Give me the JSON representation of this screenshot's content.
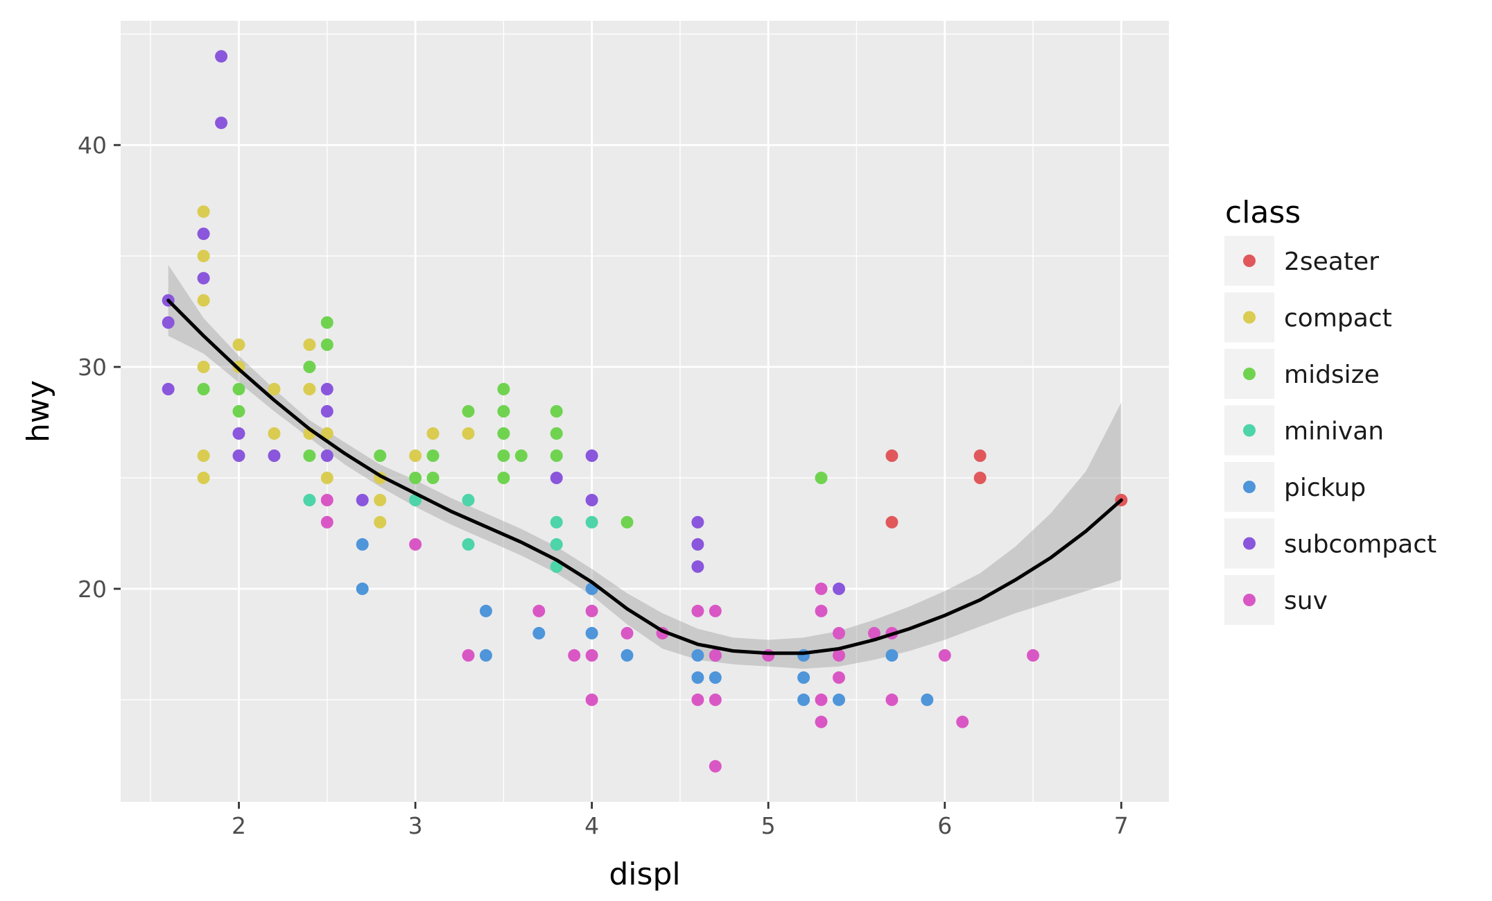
{
  "chart_data": {
    "type": "scatter",
    "xlabel": "displ",
    "ylabel": "hwy",
    "xlim": [
      1.33,
      7.27
    ],
    "ylim": [
      10.4,
      45.6
    ],
    "x_ticks": [
      2,
      3,
      4,
      5,
      6,
      7
    ],
    "y_ticks": [
      20,
      30,
      40
    ],
    "grid": true,
    "legend": {
      "title": "class",
      "position": "right"
    },
    "series": [
      {
        "name": "2seater",
        "color": "#e0585b",
        "points": [
          [
            5.7,
            26
          ],
          [
            5.7,
            23
          ],
          [
            6.2,
            26
          ],
          [
            6.2,
            25
          ],
          [
            7.0,
            24
          ]
        ]
      },
      {
        "name": "compact",
        "color": "#d9cc51",
        "points": [
          [
            1.8,
            37
          ],
          [
            1.8,
            35
          ],
          [
            1.8,
            33
          ],
          [
            1.8,
            30
          ],
          [
            1.8,
            26
          ],
          [
            1.8,
            25
          ],
          [
            2.0,
            31
          ],
          [
            2.0,
            30
          ],
          [
            2.2,
            29
          ],
          [
            2.2,
            27
          ],
          [
            2.4,
            31
          ],
          [
            2.4,
            29
          ],
          [
            2.4,
            27
          ],
          [
            2.5,
            27
          ],
          [
            2.5,
            25
          ],
          [
            2.8,
            25
          ],
          [
            2.8,
            24
          ],
          [
            2.8,
            23
          ],
          [
            3.0,
            26
          ],
          [
            3.1,
            27
          ],
          [
            3.3,
            27
          ]
        ]
      },
      {
        "name": "midsize",
        "color": "#6fd350",
        "points": [
          [
            1.8,
            29
          ],
          [
            2.0,
            29
          ],
          [
            2.0,
            28
          ],
          [
            2.4,
            30
          ],
          [
            2.4,
            26
          ],
          [
            2.5,
            32
          ],
          [
            2.5,
            31
          ],
          [
            2.8,
            26
          ],
          [
            3.0,
            25
          ],
          [
            3.1,
            26
          ],
          [
            3.1,
            25
          ],
          [
            3.3,
            28
          ],
          [
            3.5,
            29
          ],
          [
            3.5,
            28
          ],
          [
            3.5,
            27
          ],
          [
            3.5,
            26
          ],
          [
            3.5,
            25
          ],
          [
            3.6,
            26
          ],
          [
            3.8,
            28
          ],
          [
            3.8,
            27
          ],
          [
            3.8,
            26
          ],
          [
            4.2,
            23
          ],
          [
            5.3,
            25
          ]
        ]
      },
      {
        "name": "minivan",
        "color": "#4dd4a8",
        "points": [
          [
            2.4,
            24
          ],
          [
            3.0,
            24
          ],
          [
            3.3,
            24
          ],
          [
            3.3,
            22
          ],
          [
            3.8,
            23
          ],
          [
            3.8,
            22
          ],
          [
            3.8,
            21
          ],
          [
            4.0,
            23
          ]
        ]
      },
      {
        "name": "pickup",
        "color": "#4e95da",
        "points": [
          [
            2.7,
            22
          ],
          [
            2.7,
            20
          ],
          [
            3.4,
            19
          ],
          [
            3.4,
            17
          ],
          [
            3.7,
            18
          ],
          [
            4.0,
            20
          ],
          [
            4.0,
            18
          ],
          [
            4.2,
            17
          ],
          [
            4.6,
            17
          ],
          [
            4.6,
            16
          ],
          [
            4.7,
            16
          ],
          [
            4.7,
            17
          ],
          [
            5.2,
            17
          ],
          [
            5.2,
            16
          ],
          [
            5.2,
            15
          ],
          [
            5.4,
            15
          ],
          [
            5.7,
            17
          ],
          [
            5.9,
            15
          ]
        ]
      },
      {
        "name": "subcompact",
        "color": "#8a56dc",
        "points": [
          [
            1.6,
            33
          ],
          [
            1.6,
            32
          ],
          [
            1.6,
            29
          ],
          [
            1.8,
            36
          ],
          [
            1.8,
            34
          ],
          [
            1.9,
            44
          ],
          [
            1.9,
            41
          ],
          [
            2.0,
            27
          ],
          [
            2.0,
            26
          ],
          [
            2.2,
            26
          ],
          [
            2.5,
            29
          ],
          [
            2.5,
            28
          ],
          [
            2.5,
            26
          ],
          [
            2.7,
            24
          ],
          [
            3.8,
            25
          ],
          [
            4.0,
            26
          ],
          [
            4.0,
            24
          ],
          [
            4.6,
            23
          ],
          [
            4.6,
            22
          ],
          [
            4.6,
            21
          ],
          [
            5.4,
            20
          ]
        ]
      },
      {
        "name": "suv",
        "color": "#d957c4",
        "points": [
          [
            2.5,
            24
          ],
          [
            2.5,
            23
          ],
          [
            3.0,
            22
          ],
          [
            3.3,
            17
          ],
          [
            3.7,
            19
          ],
          [
            3.9,
            17
          ],
          [
            4.0,
            19
          ],
          [
            4.0,
            17
          ],
          [
            4.0,
            15
          ],
          [
            4.2,
            18
          ],
          [
            4.4,
            18
          ],
          [
            4.6,
            19
          ],
          [
            4.6,
            15
          ],
          [
            4.7,
            19
          ],
          [
            4.7,
            17
          ],
          [
            4.7,
            15
          ],
          [
            4.7,
            12
          ],
          [
            5.0,
            17
          ],
          [
            5.3,
            20
          ],
          [
            5.3,
            19
          ],
          [
            5.3,
            15
          ],
          [
            5.3,
            14
          ],
          [
            5.4,
            18
          ],
          [
            5.4,
            17
          ],
          [
            5.4,
            16
          ],
          [
            5.6,
            18
          ],
          [
            5.7,
            18
          ],
          [
            5.7,
            15
          ],
          [
            6.0,
            17
          ],
          [
            6.1,
            14
          ],
          [
            6.5,
            17
          ]
        ]
      }
    ],
    "smooth": {
      "method": "loess",
      "color": "#000000",
      "band_color": "#999999",
      "x": [
        1.6,
        1.8,
        2.0,
        2.2,
        2.4,
        2.6,
        2.8,
        3.0,
        3.2,
        3.4,
        3.6,
        3.8,
        4.0,
        4.2,
        4.4,
        4.6,
        4.8,
        5.0,
        5.2,
        5.4,
        5.6,
        5.8,
        6.0,
        6.2,
        6.4,
        6.6,
        6.8,
        7.0
      ],
      "y": [
        33.0,
        31.4,
        29.9,
        28.5,
        27.2,
        26.1,
        25.1,
        24.3,
        23.5,
        22.8,
        22.1,
        21.3,
        20.3,
        19.1,
        18.1,
        17.5,
        17.2,
        17.1,
        17.1,
        17.3,
        17.7,
        18.2,
        18.8,
        19.5,
        20.4,
        21.4,
        22.6,
        24.0
      ],
      "lower": [
        31.4,
        30.6,
        29.3,
        28.0,
        26.8,
        25.6,
        24.6,
        23.7,
        22.9,
        22.2,
        21.5,
        20.7,
        19.7,
        18.4,
        17.3,
        16.8,
        16.6,
        16.5,
        16.4,
        16.5,
        16.8,
        17.2,
        17.7,
        18.3,
        18.9,
        19.4,
        19.9,
        20.4
      ],
      "upper": [
        34.6,
        32.2,
        30.5,
        29.0,
        27.6,
        26.6,
        25.6,
        24.9,
        24.1,
        23.4,
        22.7,
        21.9,
        20.9,
        19.8,
        18.9,
        18.2,
        17.8,
        17.7,
        17.8,
        18.1,
        18.6,
        19.2,
        19.9,
        20.7,
        21.9,
        23.4,
        25.3,
        28.4
      ]
    }
  }
}
